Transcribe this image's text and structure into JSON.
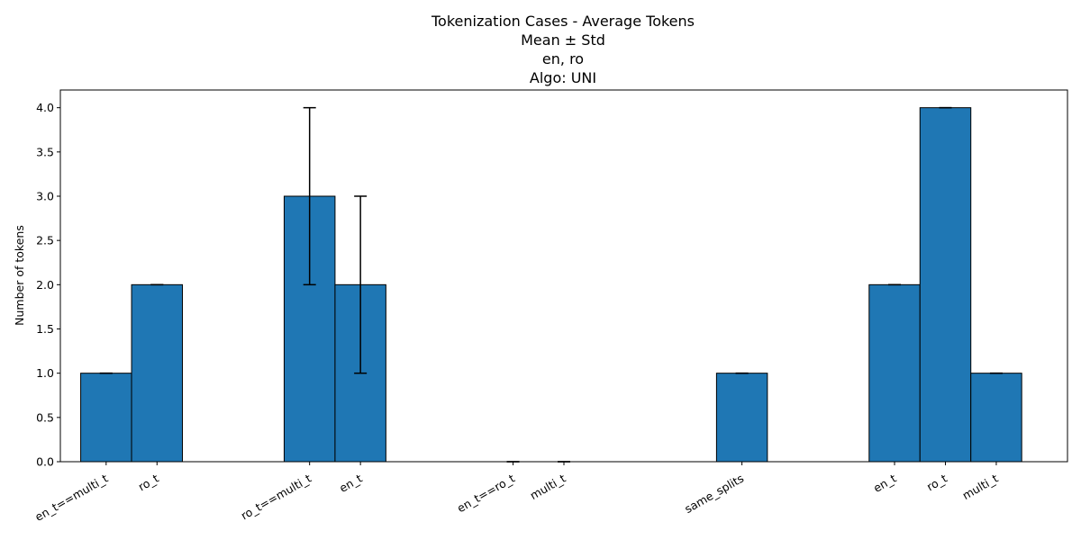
{
  "chart_data": {
    "type": "bar",
    "title_lines": [
      "Tokenization Cases - Average Tokens",
      "Mean ± Std",
      "en, ro",
      "Algo: UNI"
    ],
    "xlabel": "",
    "ylabel": "Number of tokens",
    "ylim": [
      0,
      4.2
    ],
    "yticks": [
      0.0,
      0.5,
      1.0,
      1.5,
      2.0,
      2.5,
      3.0,
      3.5,
      4.0
    ],
    "ytick_labels": [
      "0.0",
      "0.5",
      "1.0",
      "1.5",
      "2.0",
      "2.5",
      "3.0",
      "3.5",
      "4.0"
    ],
    "xlim": [
      -0.4,
      19.4
    ],
    "bar_width": 1.0,
    "bar_color": "#1f77b4",
    "edge_color": "#000000",
    "bars": [
      {
        "x": 0.5,
        "label": "en_t==multi_t",
        "value": 1.0,
        "err_low": 0.0,
        "err_high": 0.0
      },
      {
        "x": 1.5,
        "label": "ro_t",
        "value": 2.0,
        "err_low": 0.0,
        "err_high": 0.0
      },
      {
        "x": 4.5,
        "label": "ro_t==multi_t",
        "value": 3.0,
        "err_low": 1.0,
        "err_high": 1.0
      },
      {
        "x": 5.5,
        "label": "en_t",
        "value": 2.0,
        "err_low": 1.0,
        "err_high": 1.0
      },
      {
        "x": 8.5,
        "label": "en_t==ro_t",
        "value": 0.0,
        "err_low": 0.0,
        "err_high": 0.0
      },
      {
        "x": 9.5,
        "label": "multi_t",
        "value": 0.0,
        "err_low": 0.0,
        "err_high": 0.0
      },
      {
        "x": 13.0,
        "label": "same_splits",
        "value": 1.0,
        "err_low": 0.0,
        "err_high": 0.0
      },
      {
        "x": 16.0,
        "label": "en_t",
        "value": 2.0,
        "err_low": 0.0,
        "err_high": 0.0
      },
      {
        "x": 17.0,
        "label": "ro_t",
        "value": 4.0,
        "err_low": 0.0,
        "err_high": 0.0
      },
      {
        "x": 18.0,
        "label": "multi_t",
        "value": 1.0,
        "err_low": 0.0,
        "err_high": 0.0
      }
    ]
  }
}
